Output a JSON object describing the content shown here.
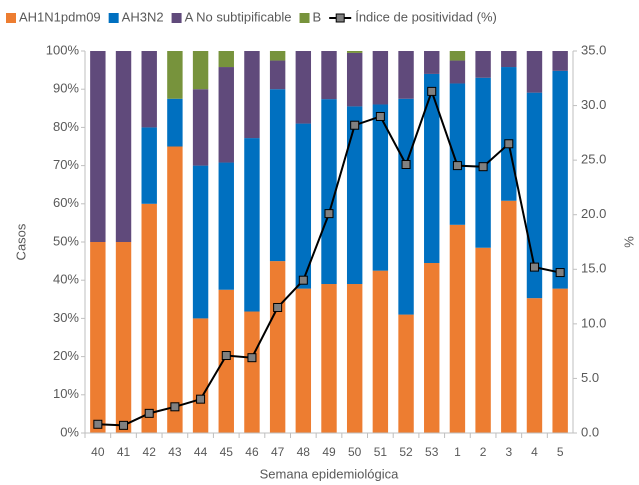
{
  "chart_data": {
    "type": "stacked_bar_line",
    "categories": [
      "40",
      "41",
      "42",
      "43",
      "44",
      "45",
      "46",
      "47",
      "48",
      "49",
      "50",
      "51",
      "52",
      "53",
      "1",
      "2",
      "3",
      "4",
      "5"
    ],
    "series": [
      {
        "name": "AH1N1pdm09",
        "color": "#ED7D31",
        "values": [
          50,
          50,
          60,
          75,
          30,
          37.5,
          31.8,
          45,
          37.8,
          39,
          39,
          42.5,
          31,
          44.5,
          54.5,
          48.5,
          60.8,
          35.3,
          37.8
        ]
      },
      {
        "name": "AH3N2",
        "color": "#0070C0",
        "values": [
          0,
          0,
          20,
          12.5,
          40,
          33.3,
          45.4,
          45,
          43.2,
          48.4,
          46.5,
          43.5,
          56.5,
          49.5,
          37,
          44.5,
          35,
          53.8,
          57
        ]
      },
      {
        "name": "A No subtipificable",
        "color": "#604A7B",
        "values": [
          50,
          50,
          20,
          0,
          20,
          25,
          22.8,
          7.5,
          19,
          12.6,
          14,
          14,
          12.5,
          6,
          6,
          7,
          4.2,
          10.9,
          5.2
        ]
      },
      {
        "name": "B",
        "color": "#77933C",
        "values": [
          0,
          0,
          0,
          12.5,
          10,
          4.2,
          0,
          2.5,
          0,
          0,
          0.5,
          0,
          0,
          0,
          2.5,
          0,
          0,
          0,
          0
        ]
      },
      {
        "name": "Índice de positividad (%)",
        "color": "#000000",
        "marker_color": "#808080",
        "axis": "y2",
        "values": [
          0.8,
          0.7,
          1.8,
          2.4,
          3.1,
          7.1,
          6.9,
          11.5,
          14.0,
          20.1,
          28.2,
          29.0,
          24.6,
          31.3,
          24.5,
          24.4,
          26.5,
          15.2,
          14.7
        ]
      }
    ],
    "ylabel": "Casos",
    "y2label": "%",
    "xlabel": "Semana epidemiológica",
    "ylim": [
      0,
      100
    ],
    "yticks": [
      {
        "value": 0,
        "label": "0%"
      },
      {
        "value": 10,
        "label": "10%"
      },
      {
        "value": 20,
        "label": "20%"
      },
      {
        "value": 30,
        "label": "30%"
      },
      {
        "value": 40,
        "label": "40%"
      },
      {
        "value": 50,
        "label": "50%"
      },
      {
        "value": 60,
        "label": "60%"
      },
      {
        "value": 70,
        "label": "70%"
      },
      {
        "value": 80,
        "label": "80%"
      },
      {
        "value": 90,
        "label": "90%"
      },
      {
        "value": 100,
        "label": "100%"
      }
    ],
    "y2lim": [
      0,
      35
    ],
    "y2ticks": [
      {
        "value": 0,
        "label": "0.0"
      },
      {
        "value": 5,
        "label": "5.0"
      },
      {
        "value": 10,
        "label": "10.0"
      },
      {
        "value": 15,
        "label": "15.0"
      },
      {
        "value": 20,
        "label": "20.0"
      },
      {
        "value": 25,
        "label": "25.0"
      },
      {
        "value": 30,
        "label": "30.0"
      },
      {
        "value": 35,
        "label": "35.0"
      }
    ],
    "legend": "top"
  }
}
